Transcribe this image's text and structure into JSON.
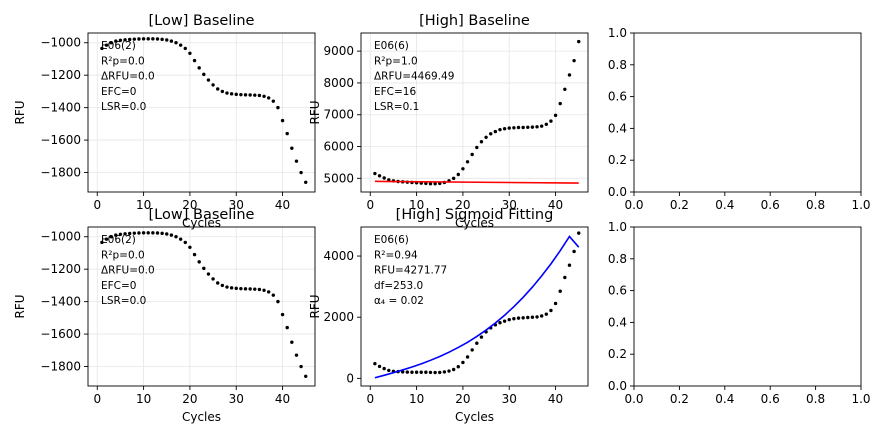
{
  "chart_data": [
    {
      "id": "p1",
      "type": "scatter",
      "title": "[Low] Baseline",
      "xlabel": "Cycles",
      "ylabel": "RFU",
      "xlim": [
        -2,
        47
      ],
      "ylim": [
        -1920,
        -940
      ],
      "xticks": [
        0,
        10,
        20,
        30,
        40
      ],
      "yticks": [
        -1000,
        -1200,
        -1400,
        -1600,
        -1800
      ],
      "grid": true,
      "annotation": [
        "E06(2)",
        "R²p=0.0",
        "ΔRFU=0.0",
        "EFC=0",
        "LSR=0.0"
      ],
      "series": [
        {
          "style": "points",
          "color": "#000000",
          "x": [
            1,
            2,
            3,
            4,
            5,
            6,
            7,
            8,
            9,
            10,
            11,
            12,
            13,
            14,
            15,
            16,
            17,
            18,
            19,
            20,
            21,
            22,
            23,
            24,
            25,
            26,
            27,
            28,
            29,
            30,
            31,
            32,
            33,
            34,
            35,
            36,
            37,
            38,
            39,
            40,
            41,
            42,
            43,
            44,
            45
          ],
          "y": [
            -1035,
            -1015,
            -1000,
            -990,
            -985,
            -982,
            -980,
            -978,
            -977,
            -976,
            -976,
            -976,
            -977,
            -979,
            -983,
            -990,
            -1000,
            -1015,
            -1035,
            -1065,
            -1110,
            -1155,
            -1195,
            -1230,
            -1260,
            -1285,
            -1300,
            -1310,
            -1315,
            -1318,
            -1320,
            -1321,
            -1322,
            -1323,
            -1325,
            -1330,
            -1340,
            -1360,
            -1400,
            -1480,
            -1560,
            -1650,
            -1730,
            -1800,
            -1860
          ]
        }
      ]
    },
    {
      "id": "p2",
      "type": "scatter",
      "title": "[High] Baseline",
      "xlabel": "Cycles",
      "ylabel": "RFU",
      "xlim": [
        -2,
        47
      ],
      "ylim": [
        4570,
        9570
      ],
      "xticks": [
        0,
        10,
        20,
        30,
        40
      ],
      "yticks": [
        5000,
        6000,
        7000,
        8000,
        9000
      ],
      "grid": true,
      "annotation": [
        "E06(6)",
        "R²p=1.0",
        "ΔRFU=4469.49",
        "EFC=16",
        "LSR=0.1"
      ],
      "series": [
        {
          "style": "points",
          "color": "#000000",
          "x": [
            1,
            2,
            3,
            4,
            5,
            6,
            7,
            8,
            9,
            10,
            11,
            12,
            13,
            14,
            15,
            16,
            17,
            18,
            19,
            20,
            21,
            22,
            23,
            24,
            25,
            26,
            27,
            28,
            29,
            30,
            31,
            32,
            33,
            34,
            35,
            36,
            37,
            38,
            39,
            40,
            41,
            42,
            43,
            44,
            45
          ],
          "y": [
            5150,
            5080,
            5010,
            4950,
            4920,
            4900,
            4890,
            4880,
            4870,
            4860,
            4850,
            4840,
            4830,
            4830,
            4840,
            4870,
            4920,
            5000,
            5120,
            5300,
            5520,
            5750,
            5970,
            6150,
            6290,
            6400,
            6470,
            6530,
            6560,
            6580,
            6590,
            6600,
            6600,
            6605,
            6610,
            6620,
            6640,
            6700,
            6800,
            6980,
            7350,
            7800,
            8250,
            8700,
            9300
          ]
        },
        {
          "style": "line",
          "color": "#ff0000",
          "x": [
            1,
            45
          ],
          "y": [
            4905,
            4850
          ]
        }
      ]
    },
    {
      "id": "p3",
      "type": "scatter",
      "title": "",
      "xlabel": "",
      "ylabel": "",
      "xlim": [
        0,
        1
      ],
      "ylim": [
        0,
        1
      ],
      "xticks": [
        0.0,
        0.2,
        0.4,
        0.6,
        0.8,
        1.0
      ],
      "yticks": [
        0.0,
        0.2,
        0.4,
        0.6,
        0.8,
        1.0
      ],
      "grid": false,
      "annotation": [],
      "series": []
    },
    {
      "id": "p4",
      "type": "scatter",
      "title": "[Low] Baseline",
      "xlabel": "Cycles",
      "ylabel": "RFU",
      "xlim": [
        -2,
        47
      ],
      "ylim": [
        -1920,
        -940
      ],
      "xticks": [
        0,
        10,
        20,
        30,
        40
      ],
      "yticks": [
        -1000,
        -1200,
        -1400,
        -1600,
        -1800
      ],
      "grid": true,
      "annotation": [
        "E06(2)",
        "R²p=0.0",
        "ΔRFU=0.0",
        "EFC=0",
        "LSR=0.0"
      ],
      "series": [
        {
          "style": "points",
          "color": "#000000",
          "x": [
            1,
            2,
            3,
            4,
            5,
            6,
            7,
            8,
            9,
            10,
            11,
            12,
            13,
            14,
            15,
            16,
            17,
            18,
            19,
            20,
            21,
            22,
            23,
            24,
            25,
            26,
            27,
            28,
            29,
            30,
            31,
            32,
            33,
            34,
            35,
            36,
            37,
            38,
            39,
            40,
            41,
            42,
            43,
            44,
            45
          ],
          "y": [
            -1035,
            -1015,
            -1000,
            -990,
            -985,
            -982,
            -980,
            -978,
            -977,
            -976,
            -976,
            -976,
            -977,
            -979,
            -983,
            -990,
            -1000,
            -1015,
            -1035,
            -1065,
            -1110,
            -1155,
            -1195,
            -1230,
            -1260,
            -1285,
            -1300,
            -1310,
            -1315,
            -1318,
            -1320,
            -1321,
            -1322,
            -1323,
            -1325,
            -1330,
            -1340,
            -1360,
            -1400,
            -1480,
            -1560,
            -1650,
            -1730,
            -1800,
            -1860
          ]
        }
      ]
    },
    {
      "id": "p5",
      "type": "scatter",
      "title": "[High] Sigmoid Fitting",
      "xlabel": "Cycles",
      "ylabel": "RFU",
      "xlim": [
        -2,
        47
      ],
      "ylim": [
        -250,
        4950
      ],
      "xticks": [
        0,
        10,
        20,
        30,
        40
      ],
      "yticks": [
        0,
        2000,
        4000
      ],
      "grid": false,
      "annotation": [
        "E06(6)",
        "R²=0.94",
        "RFU=4271.77",
        "df=253.0",
        "α₄ = 0.02"
      ],
      "series": [
        {
          "style": "points",
          "color": "#000000",
          "x": [
            1,
            2,
            3,
            4,
            5,
            6,
            7,
            8,
            9,
            10,
            11,
            12,
            13,
            14,
            15,
            16,
            17,
            18,
            19,
            20,
            21,
            22,
            23,
            24,
            25,
            26,
            27,
            28,
            29,
            30,
            31,
            32,
            33,
            34,
            35,
            36,
            37,
            38,
            39,
            40,
            41,
            42,
            43,
            44,
            45
          ],
          "y": [
            480,
            390,
            320,
            260,
            230,
            220,
            210,
            205,
            200,
            200,
            200,
            200,
            195,
            190,
            195,
            210,
            240,
            290,
            380,
            520,
            700,
            930,
            1150,
            1350,
            1520,
            1650,
            1750,
            1820,
            1870,
            1920,
            1950,
            1970,
            1980,
            1990,
            2000,
            2010,
            2040,
            2100,
            2220,
            2450,
            2850,
            3300,
            3700,
            4150,
            4750
          ]
        },
        {
          "style": "fit",
          "color": "#0000ff",
          "x": [
            1,
            3,
            5,
            7,
            9,
            11,
            13,
            15,
            17,
            19,
            21,
            23,
            25,
            27,
            29,
            31,
            33,
            35,
            37,
            39,
            41,
            43,
            45
          ],
          "y": [
            20,
            100,
            185,
            275,
            370,
            475,
            590,
            715,
            855,
            1010,
            1180,
            1370,
            1580,
            1810,
            2065,
            2345,
            2650,
            2985,
            3350,
            3745,
            4175,
            4640,
            4290
          ]
        }
      ]
    },
    {
      "id": "p6",
      "type": "scatter",
      "title": "",
      "xlabel": "",
      "ylabel": "",
      "xlim": [
        0,
        1
      ],
      "ylim": [
        0,
        1
      ],
      "xticks": [
        0.0,
        0.2,
        0.4,
        0.6,
        0.8,
        1.0
      ],
      "yticks": [
        0.0,
        0.2,
        0.4,
        0.6,
        0.8,
        1.0
      ],
      "grid": false,
      "annotation": [],
      "series": []
    }
  ]
}
